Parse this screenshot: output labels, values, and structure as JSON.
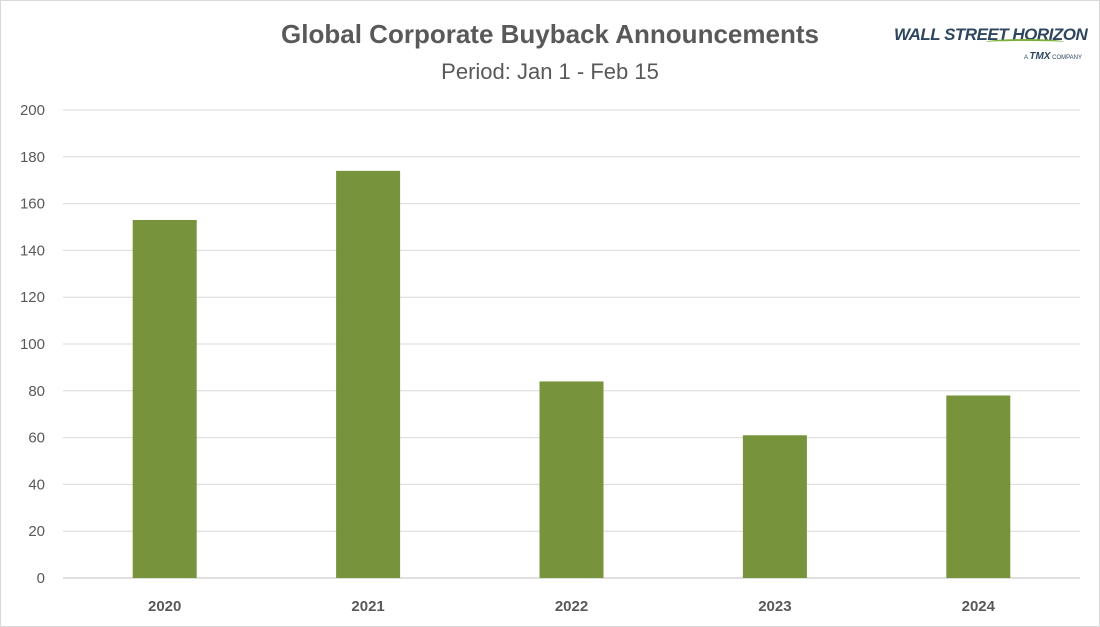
{
  "logo": {
    "name": "WALL STREET HORIZON",
    "tagline_prefix": "A",
    "tagline_brand": "TMX",
    "tagline_suffix": "COMPANY"
  },
  "chart_data": {
    "type": "bar",
    "title": "Global Corporate Buyback Announcements",
    "subtitle": "Period: Jan 1 - Feb 15",
    "xlabel": "",
    "ylabel": "",
    "categories": [
      "2020",
      "2021",
      "2022",
      "2023",
      "2024"
    ],
    "values": [
      153,
      174,
      84,
      61,
      78
    ],
    "ylim": [
      0,
      200
    ],
    "yticks": [
      0,
      20,
      40,
      60,
      80,
      100,
      120,
      140,
      160,
      180,
      200
    ],
    "grid": true,
    "legend": "none",
    "bar_color": "#77933c",
    "grid_color": "#d9d9d9"
  }
}
